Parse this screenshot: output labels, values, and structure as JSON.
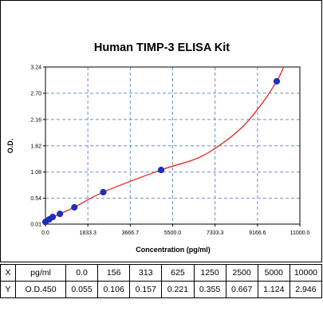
{
  "chart_data": {
    "type": "scatter",
    "title": "Human TIMP-3 ELISA Kit",
    "xlabel": "Concentration (pg/ml)",
    "ylabel": "O.D.",
    "xlim": [
      0,
      11000
    ],
    "ylim": [
      0.01,
      3.24
    ],
    "x_ticks": [
      "0.0",
      "1833.3",
      "3666.7",
      "5500.0",
      "7333.3",
      "9166.6",
      "11000.0"
    ],
    "y_ticks": [
      "0.01",
      "0.54",
      "1.08",
      "1.62",
      "2.16",
      "2.70",
      "3.24"
    ],
    "grid": true,
    "colors": {
      "points": "#1f2fc4",
      "curve": "#e8261d",
      "grid": "#6e8fc7"
    },
    "points": [
      {
        "x": 0,
        "y": 0.055
      },
      {
        "x": 156,
        "y": 0.106
      },
      {
        "x": 313,
        "y": 0.157
      },
      {
        "x": 625,
        "y": 0.221
      },
      {
        "x": 1250,
        "y": 0.355
      },
      {
        "x": 2500,
        "y": 0.667
      },
      {
        "x": 5000,
        "y": 1.124
      },
      {
        "x": 10000,
        "y": 2.946
      }
    ],
    "curve": [
      {
        "x": 0,
        "y": 0.01
      },
      {
        "x": 156,
        "y": 0.106
      },
      {
        "x": 625,
        "y": 0.221
      },
      {
        "x": 1250,
        "y": 0.355
      },
      {
        "x": 2500,
        "y": 0.667
      },
      {
        "x": 5000,
        "y": 1.124
      },
      {
        "x": 6500,
        "y": 1.35
      },
      {
        "x": 7500,
        "y": 1.62
      },
      {
        "x": 8500,
        "y": 2.0
      },
      {
        "x": 9300,
        "y": 2.45
      },
      {
        "x": 10000,
        "y": 2.946
      },
      {
        "x": 10300,
        "y": 3.24
      }
    ]
  },
  "table": {
    "rows": [
      [
        "X",
        "pg/ml",
        "0.0",
        "156",
        "313",
        "625",
        "1250",
        "2500",
        "5000",
        "10000"
      ],
      [
        "Y",
        "O.D.450",
        "0.055",
        "0.106",
        "0.157",
        "0.221",
        "0.355",
        "0.667",
        "1.124",
        "2.946"
      ]
    ]
  }
}
